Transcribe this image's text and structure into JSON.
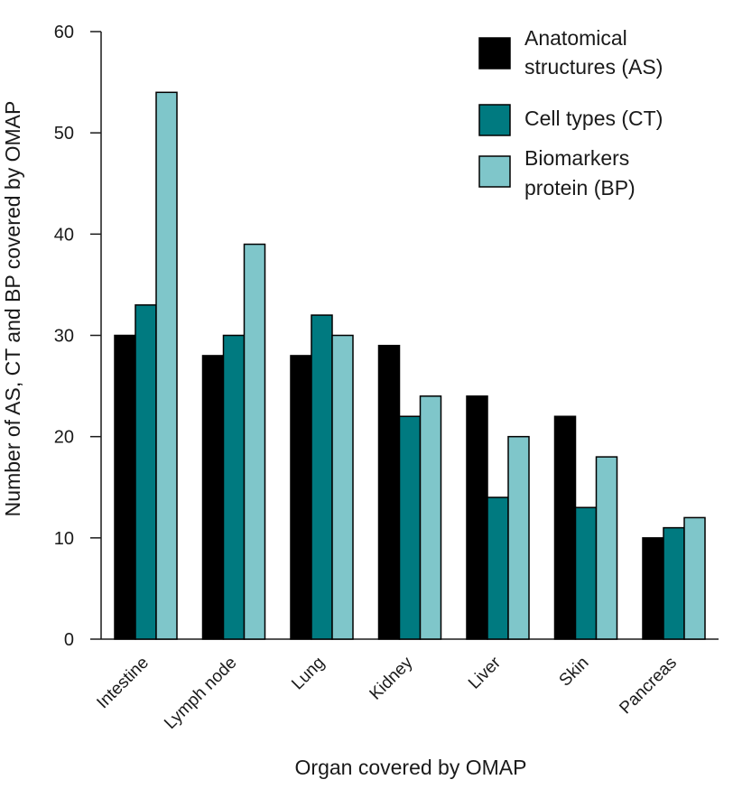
{
  "chart_data": {
    "type": "bar",
    "title": "",
    "xlabel": "Organ covered by OMAP",
    "ylabel": "Number of AS, CT and BP covered by OMAP",
    "ylim": [
      0,
      60
    ],
    "yticks": [
      "0",
      "10",
      "20",
      "30",
      "40",
      "50",
      "60"
    ],
    "grid": false,
    "legend_position": "top-right",
    "categories": [
      "Intestine",
      "Lymph node",
      "Lung",
      "Kidney",
      "Liver",
      "Skin",
      "Pancreas"
    ],
    "series": [
      {
        "name": "Anatomical structures (AS)",
        "legend_lines": [
          "Anatomical",
          "structures (AS)"
        ],
        "color": "#000000",
        "values": [
          30,
          28,
          28,
          29,
          24,
          22,
          10
        ]
      },
      {
        "name": "Cell types (CT)",
        "legend_lines": [
          "Cell types (CT)"
        ],
        "color": "#007a80",
        "values": [
          33,
          30,
          32,
          22,
          14,
          13,
          11
        ]
      },
      {
        "name": "Biomarkers protein (BP)",
        "legend_lines": [
          "Biomarkers",
          "protein (BP)"
        ],
        "color": "#7fc6ca",
        "values": [
          54,
          39,
          30,
          24,
          20,
          18,
          12
        ]
      }
    ]
  }
}
